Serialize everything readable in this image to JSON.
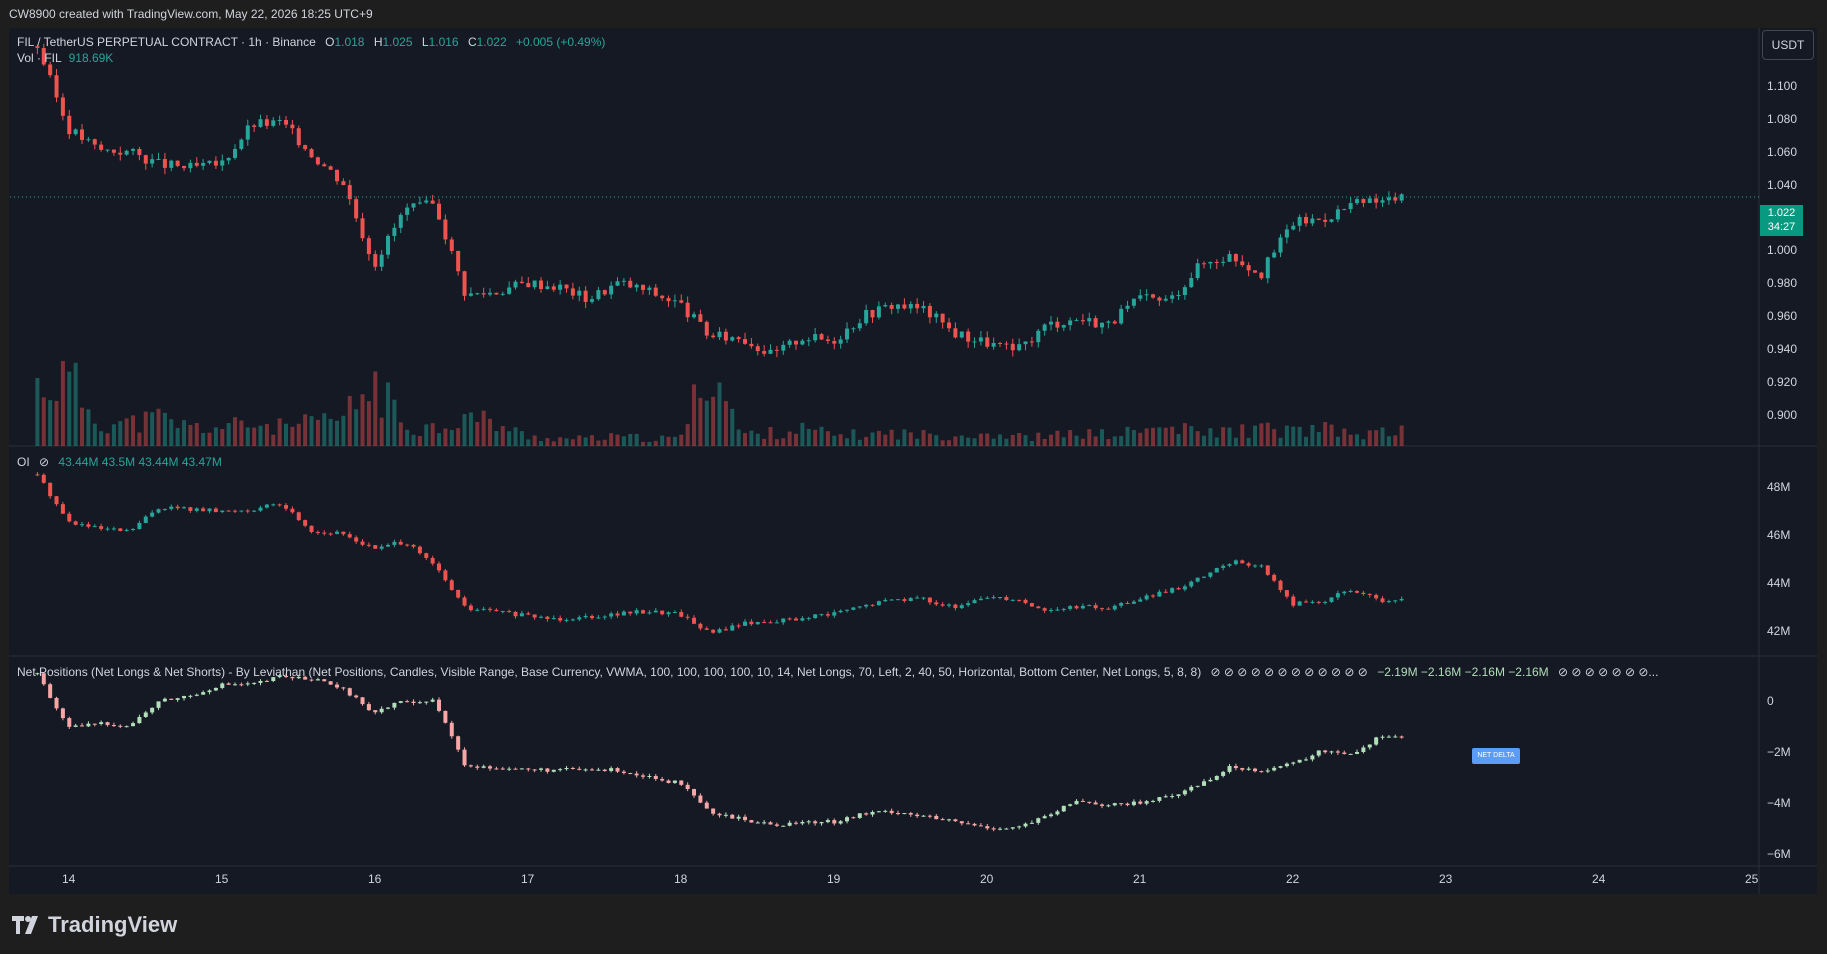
{
  "header": {
    "credit": "CW8900 created with TradingView.com, May 22, 2026 18:25 UTC+9"
  },
  "legend": {
    "symbol": "FIL / TetherUS PERPETUAL CONTRACT · 1h · Binance",
    "o_label": "O",
    "o_val": "1.018",
    "h_label": "H",
    "h_val": "1.025",
    "l_label": "L",
    "l_val": "1.016",
    "c_label": "C",
    "c_val": "1.022",
    "change": "+0.005 (+0.49%)",
    "vol_label": "Vol · FIL",
    "vol_val": "918.69K",
    "oi_label": "OI",
    "oi_symbol": "⊘",
    "oi_vals": "43.44M  43.5M  43.44M  43.47M",
    "np_label": "Net Positions (Net Longs & Net Shorts) - By Leviathan (Net Positions, Candles, Visible Range, Base Currency, VWMA, 100, 100, 100, 100, 10, 14, Net Longs, 70, Left, 2, 40, 50, Horizontal, Bottom Center, Net Longs, 5, 8, 8)",
    "np_symbols": "⊘ ⊘ ⊘ ⊘ ⊘ ⊘ ⊘ ⊘ ⊘ ⊘ ⊘ ⊘",
    "np_vals": "−2.19M  −2.16M  −2.16M  −2.16M",
    "np_tail": "⊘ ⊘ ⊘ ⊘ ⊘ ⊘ ⊘..."
  },
  "price_scale": {
    "currency": "USDT",
    "ticks": [
      "1.100",
      "1.080",
      "1.060",
      "1.040",
      "1.000",
      "0.980",
      "0.960",
      "0.940",
      "0.920",
      "0.900"
    ],
    "last_price": "1.022",
    "countdown": "34:27"
  },
  "oi_scale": {
    "ticks": [
      "48M",
      "46M",
      "44M",
      "42M"
    ]
  },
  "np_scale": {
    "ticks": [
      "0",
      "−2M",
      "−4M",
      "−6M"
    ],
    "marker": "NET DELTA"
  },
  "time_axis": {
    "ticks": [
      "14",
      "15",
      "16",
      "17",
      "18",
      "19",
      "20",
      "21",
      "22",
      "23",
      "24",
      "25"
    ]
  },
  "footer": {
    "brand": "TradingView"
  },
  "colors": {
    "up": "#26a69a",
    "down": "#ef5350",
    "np_up": "#b2dfba",
    "np_down": "#f7a6a6",
    "background": "#151924"
  },
  "chart_data": [
    {
      "type": "candlestick",
      "title": "FIL / TetherUS PERPETUAL CONTRACT · 1h · Binance",
      "ylabel": "USDT",
      "ylim": [
        0.885,
        1.115
      ],
      "x_ticks": [
        "14",
        "15",
        "16",
        "17",
        "18",
        "19",
        "20",
        "21",
        "22",
        "23",
        "24",
        "25"
      ],
      "series": [
        {
          "name": "FIL price (close)",
          "x": [
            13.8,
            14.0,
            14.2,
            14.4,
            14.6,
            14.8,
            15.0,
            15.2,
            15.4,
            15.6,
            15.8,
            16.0,
            16.2,
            16.4,
            16.6,
            16.8,
            17.0,
            17.2,
            17.4,
            17.6,
            17.8,
            18.0,
            18.2,
            18.4,
            18.6,
            18.8,
            19.0,
            19.2,
            19.4,
            19.6,
            19.8,
            20.0,
            20.2,
            20.4,
            20.6,
            20.8,
            21.0,
            21.2,
            21.4,
            21.6,
            21.8,
            22.0,
            22.2,
            22.4,
            22.6,
            22.75
          ],
          "values": [
            1.105,
            1.06,
            1.048,
            1.047,
            1.04,
            1.038,
            1.04,
            1.062,
            1.063,
            1.045,
            1.03,
            0.985,
            1.015,
            1.018,
            0.968,
            0.97,
            0.975,
            0.973,
            0.966,
            0.975,
            0.97,
            0.963,
            0.945,
            0.945,
            0.935,
            0.945,
            0.943,
            0.957,
            0.963,
            0.96,
            0.947,
            0.942,
            0.937,
            0.952,
            0.955,
            0.952,
            0.966,
            0.965,
            0.985,
            0.99,
            0.98,
            1.008,
            1.01,
            1.018,
            1.02,
            1.022
          ]
        }
      ]
    },
    {
      "type": "bar",
      "title": "Vol · FIL",
      "series": [
        {
          "name": "Volume",
          "x": [
            13.8,
            14.0,
            14.2,
            14.4,
            14.6,
            14.8,
            15.0,
            15.2,
            15.4,
            15.6,
            15.8,
            16.0,
            16.2,
            16.4,
            16.6,
            16.8,
            17.0,
            17.2,
            17.4,
            17.6,
            17.8,
            18.0,
            18.2,
            18.4,
            18.6,
            18.8,
            19.0,
            19.2,
            19.4,
            19.6,
            19.8,
            20.0,
            20.2,
            20.4,
            20.6,
            20.8,
            21.0,
            21.2,
            21.4,
            21.6,
            21.8,
            22.0,
            22.2,
            22.4,
            22.6,
            22.75
          ],
          "values": [
            3.2,
            3.7,
            1.3,
            1.2,
            1.5,
            1.0,
            1.0,
            1.2,
            1.0,
            1.2,
            1.5,
            3.4,
            1.1,
            1.0,
            1.6,
            1.2,
            0.5,
            0.4,
            0.4,
            0.5,
            0.4,
            0.4,
            4.6,
            0.6,
            0.7,
            0.9,
            0.6,
            0.6,
            0.7,
            0.6,
            0.6,
            0.7,
            0.5,
            0.5,
            0.7,
            0.6,
            0.8,
            1.0,
            0.7,
            0.8,
            0.9,
            0.8,
            0.9,
            0.6,
            0.7,
            0.9
          ]
        }
      ]
    },
    {
      "type": "candlestick",
      "title": "OI",
      "ylim": [
        41.2,
        49.6
      ],
      "y_ticks": [
        "48M",
        "46M",
        "44M",
        "42M"
      ],
      "series": [
        {
          "name": "OI (close)",
          "x": [
            13.8,
            14.0,
            14.2,
            14.4,
            14.6,
            14.8,
            15.0,
            15.2,
            15.4,
            15.6,
            15.8,
            16.0,
            16.2,
            16.4,
            16.6,
            16.8,
            17.0,
            17.2,
            17.4,
            17.6,
            17.8,
            18.0,
            18.2,
            18.4,
            18.6,
            18.8,
            19.0,
            19.2,
            19.4,
            19.6,
            19.8,
            20.0,
            20.2,
            20.4,
            20.6,
            20.8,
            21.0,
            21.2,
            21.4,
            21.6,
            21.8,
            22.0,
            22.2,
            22.4,
            22.6,
            22.75
          ],
          "values": [
            48.5,
            46.6,
            46.3,
            46.2,
            47.2,
            47.1,
            47.0,
            47.1,
            47.3,
            46.2,
            46.1,
            45.5,
            45.8,
            44.8,
            43.1,
            43.0,
            42.8,
            42.7,
            42.8,
            42.9,
            43.0,
            42.9,
            42.1,
            42.5,
            42.6,
            42.7,
            42.9,
            43.2,
            43.5,
            43.5,
            43.1,
            43.6,
            43.5,
            43.0,
            43.2,
            43.1,
            43.5,
            43.8,
            44.3,
            45.0,
            44.8,
            43.3,
            43.4,
            43.9,
            43.3,
            43.5
          ]
        }
      ]
    },
    {
      "type": "candlestick",
      "title": "Net Positions (Net Longs & Net Shorts) - By Leviathan",
      "ylim": [
        -6.8,
        0.8
      ],
      "y_ticks": [
        "0",
        "−2M",
        "−4M",
        "−6M"
      ],
      "series": [
        {
          "name": "Net Longs (close)",
          "x": [
            13.8,
            14.0,
            14.2,
            14.4,
            14.6,
            14.8,
            15.0,
            15.2,
            15.4,
            15.6,
            15.8,
            16.0,
            16.2,
            16.4,
            16.6,
            16.8,
            17.0,
            17.2,
            17.4,
            17.6,
            17.8,
            18.0,
            18.2,
            18.4,
            18.6,
            18.8,
            19.0,
            19.2,
            19.4,
            19.6,
            19.8,
            20.0,
            20.2,
            20.4,
            20.6,
            20.8,
            21.0,
            21.2,
            21.4,
            21.6,
            21.8,
            22.0,
            22.2,
            22.4,
            22.6,
            22.75
          ],
          "values": [
            0.2,
            -1.8,
            -1.6,
            -1.7,
            -0.8,
            -0.6,
            -0.2,
            -0.2,
            0.1,
            0.0,
            -0.4,
            -1.2,
            -0.8,
            -0.8,
            -3.2,
            -3.2,
            -3.3,
            -3.3,
            -3.3,
            -3.3,
            -3.6,
            -3.8,
            -4.9,
            -5.1,
            -5.3,
            -5.2,
            -5.2,
            -4.9,
            -4.8,
            -5.0,
            -5.2,
            -5.4,
            -5.4,
            -5.0,
            -4.4,
            -4.6,
            -4.5,
            -4.3,
            -3.8,
            -3.2,
            -3.3,
            -3.1,
            -2.6,
            -2.7,
            -2.0,
            -2.16
          ]
        }
      ]
    }
  ]
}
